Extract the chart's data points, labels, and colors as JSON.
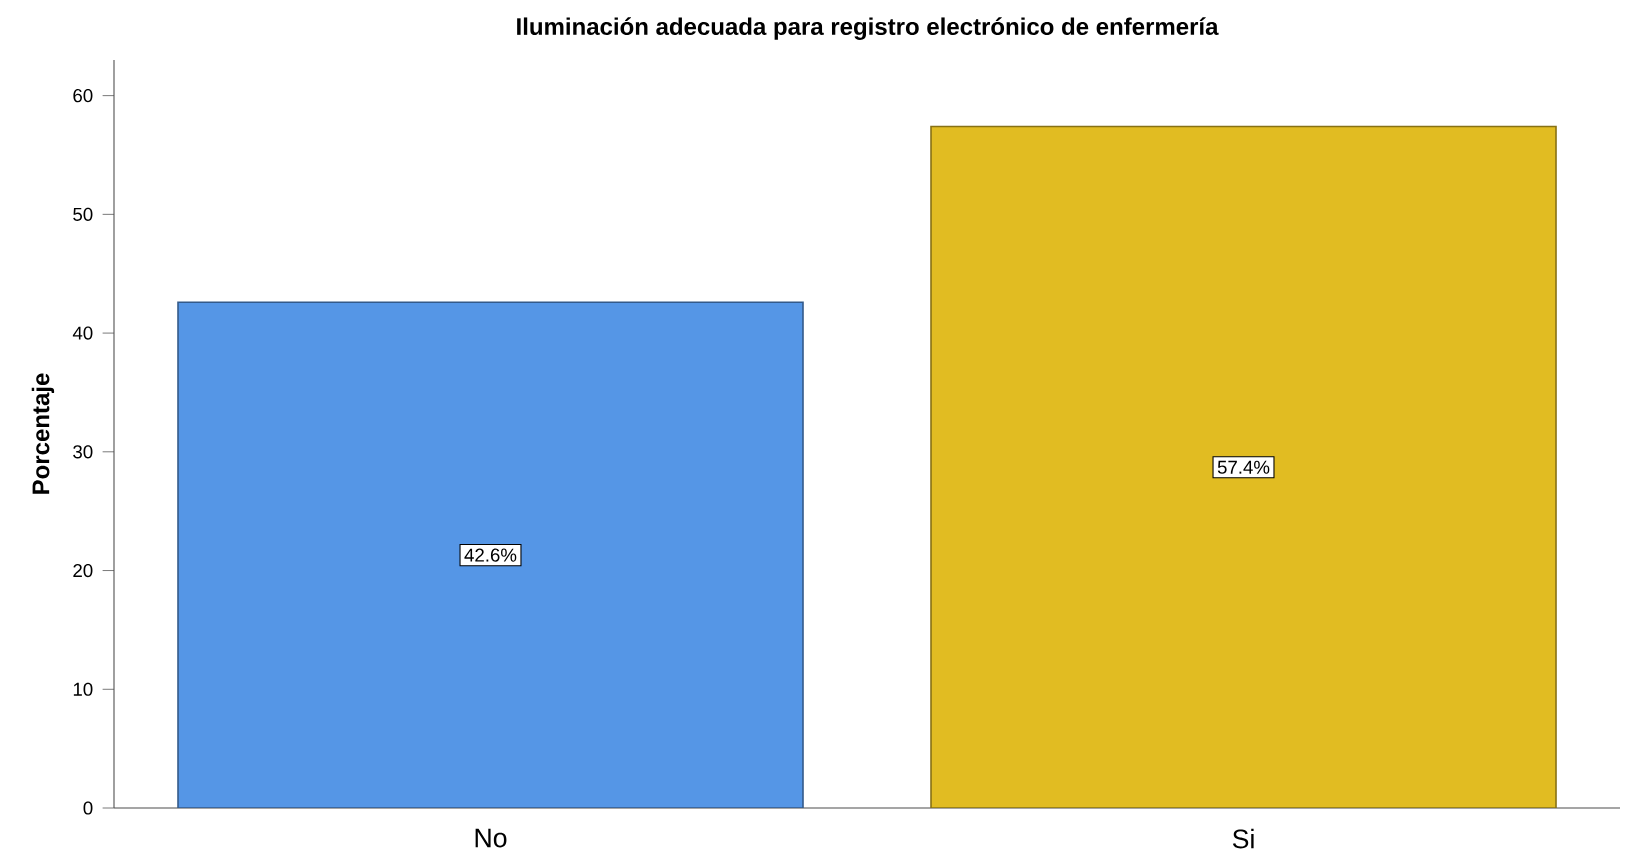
{
  "chart_data": {
    "type": "bar",
    "title": "Iluminación adecuada para registro electrónico de enfermería",
    "ylabel": "Porcentaje",
    "categories": [
      "No",
      "Si"
    ],
    "values": [
      42.6,
      57.4
    ],
    "colors": [
      "#5596e6",
      "#e1bc22"
    ],
    "value_labels": [
      "42.6%",
      "57.4%"
    ],
    "ylim": [
      0,
      63
    ],
    "yticks": [
      0,
      10,
      20,
      30,
      40,
      50,
      60
    ]
  }
}
